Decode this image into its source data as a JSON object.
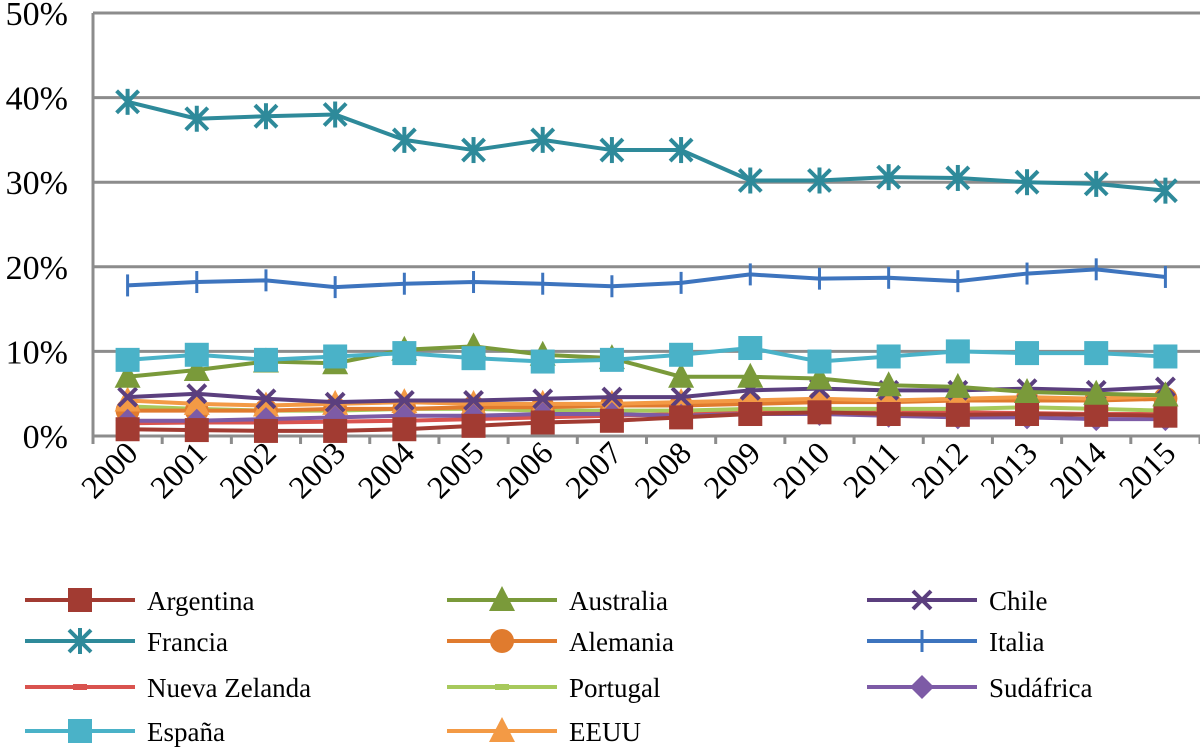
{
  "chart_data": {
    "type": "line",
    "title": "",
    "xlabel": "",
    "ylabel": "",
    "ylim": [
      0,
      50
    ],
    "y_ticks": [
      "0%",
      "10%",
      "20%",
      "30%",
      "40%",
      "50%"
    ],
    "x_unit_suffix": "%",
    "categories": [
      "2000",
      "2001",
      "2002",
      "2003",
      "2004",
      "2005",
      "2006",
      "2007",
      "2008",
      "2009",
      "2010",
      "2011",
      "2012",
      "2013",
      "2014",
      "2015"
    ],
    "grid": true,
    "legend_position": "bottom",
    "series": [
      {
        "name": "Argentina",
        "color": "#A23B32",
        "marker": "square",
        "values": [
          0.8,
          0.7,
          0.6,
          0.6,
          0.8,
          1.2,
          1.6,
          1.8,
          2.2,
          2.6,
          2.8,
          2.6,
          2.5,
          2.6,
          2.5,
          2.4
        ]
      },
      {
        "name": "Australia",
        "color": "#7A9A3A",
        "marker": "triangle",
        "values": [
          7.0,
          7.8,
          8.8,
          8.6,
          10.2,
          10.6,
          9.6,
          9.2,
          7.0,
          7.0,
          6.8,
          6.0,
          5.8,
          5.2,
          5.0,
          4.8
        ]
      },
      {
        "name": "Chile",
        "color": "#5B3F7E",
        "marker": "x",
        "values": [
          4.6,
          5.0,
          4.4,
          4.0,
          4.2,
          4.2,
          4.4,
          4.6,
          4.6,
          5.4,
          5.6,
          5.4,
          5.4,
          5.6,
          5.4,
          5.8
        ]
      },
      {
        "name": "Francia",
        "color": "#2E8A9A",
        "marker": "star",
        "values": [
          39.5,
          37.5,
          37.8,
          38.0,
          35.0,
          33.8,
          35.0,
          33.8,
          33.8,
          30.2,
          30.2,
          30.6,
          30.5,
          30.0,
          29.8,
          29.0
        ]
      },
      {
        "name": "Alemania",
        "color": "#E07B2E",
        "marker": "circle",
        "values": [
          3.0,
          3.0,
          3.0,
          3.2,
          3.2,
          3.4,
          3.4,
          3.6,
          3.6,
          3.8,
          4.0,
          4.0,
          4.2,
          4.2,
          4.2,
          4.4
        ]
      },
      {
        "name": "Italia",
        "color": "#3D74BE",
        "marker": "plus",
        "values": [
          17.8,
          18.2,
          18.4,
          17.6,
          18.0,
          18.2,
          18.0,
          17.7,
          18.1,
          19.1,
          18.6,
          18.7,
          18.3,
          19.2,
          19.7,
          18.8
        ]
      },
      {
        "name": "Nueva Zelanda",
        "color": "#D9534F",
        "marker": "dash",
        "values": [
          1.5,
          1.6,
          1.6,
          1.7,
          1.8,
          2.0,
          2.2,
          2.4,
          2.6,
          2.8,
          3.0,
          2.9,
          2.8,
          2.7,
          2.6,
          2.6
        ]
      },
      {
        "name": "Portugal",
        "color": "#A7C95C",
        "marker": "dash",
        "values": [
          3.5,
          3.2,
          3.0,
          3.0,
          3.2,
          3.2,
          3.0,
          3.0,
          3.0,
          3.2,
          3.2,
          3.2,
          3.2,
          3.4,
          3.2,
          3.0
        ]
      },
      {
        "name": "Sudáfrica",
        "color": "#7D5BA6",
        "marker": "diamond",
        "values": [
          1.8,
          1.8,
          2.0,
          2.2,
          2.4,
          2.4,
          2.6,
          2.6,
          2.4,
          2.6,
          2.6,
          2.4,
          2.2,
          2.2,
          2.0,
          2.0
        ]
      },
      {
        "name": "España",
        "color": "#4AB2C8",
        "marker": "square",
        "values": [
          9.0,
          9.6,
          9.0,
          9.4,
          9.8,
          9.2,
          8.8,
          9.0,
          9.6,
          10.4,
          8.8,
          9.4,
          10.0,
          9.8,
          9.8,
          9.4
        ]
      },
      {
        "name": "EEUU",
        "color": "#F39A45",
        "marker": "triangle",
        "values": [
          4.2,
          3.8,
          3.6,
          3.8,
          4.0,
          3.8,
          3.8,
          3.8,
          4.0,
          4.2,
          4.4,
          4.2,
          4.4,
          4.6,
          4.4,
          4.8
        ]
      }
    ]
  }
}
